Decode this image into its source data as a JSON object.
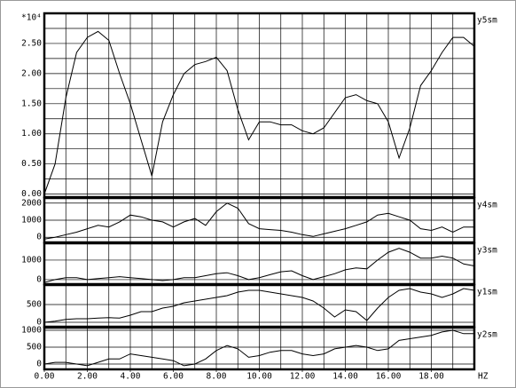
{
  "chart_data": [
    {
      "type": "line",
      "name": "y5sm",
      "multiplier": "*10⁴",
      "x": [
        0,
        0.5,
        1,
        1.5,
        2,
        2.5,
        3,
        3.5,
        4,
        4.5,
        5,
        5.5,
        6,
        6.5,
        7,
        7.5,
        8,
        8.5,
        9,
        9.5,
        10,
        10.5,
        11,
        11.5,
        12,
        12.5,
        13,
        13.5,
        14,
        14.5,
        15,
        15.5,
        16,
        16.5,
        17,
        17.5,
        18,
        18.5,
        19,
        19.5,
        20
      ],
      "values": [
        0,
        0.5,
        1.6,
        2.35,
        2.6,
        2.7,
        2.55,
        2.0,
        1.5,
        0.9,
        0.3,
        1.2,
        1.65,
        2.0,
        2.15,
        2.2,
        2.27,
        2.05,
        1.4,
        0.9,
        1.2,
        1.2,
        1.15,
        1.15,
        1.05,
        1.0,
        1.1,
        1.35,
        1.6,
        1.65,
        1.55,
        1.5,
        1.2,
        0.6,
        1.1,
        1.8,
        2.05,
        2.35,
        2.6,
        2.6,
        2.45
      ],
      "xlim": [
        0,
        20
      ],
      "ylim": [
        -0.05,
        3.0
      ],
      "yticks": [
        {
          "value": 0,
          "label": "0.00"
        },
        {
          "value": 0.5,
          "label": "0.50"
        },
        {
          "value": 1,
          "label": "1.00"
        },
        {
          "value": 1.5,
          "label": "1.50"
        },
        {
          "value": 2,
          "label": "2.00"
        },
        {
          "value": 2.5,
          "label": "2.50"
        }
      ],
      "minor_yticks": [
        0.25,
        0.75,
        1.25,
        1.75,
        2.25,
        2.75
      ],
      "minor_xticks": [
        1,
        2,
        3,
        4,
        5,
        6,
        7,
        8,
        9,
        10,
        11,
        12,
        13,
        14,
        15,
        16,
        17,
        18,
        19
      ],
      "grid": true
    },
    {
      "type": "line",
      "name": "y4sm",
      "x": [
        0,
        0.5,
        1,
        1.5,
        2,
        2.5,
        3,
        3.5,
        4,
        4.5,
        5,
        5.5,
        6,
        6.5,
        7,
        7.5,
        8,
        8.5,
        9,
        9.5,
        10,
        10.5,
        11,
        11.5,
        12,
        12.5,
        13,
        13.5,
        14,
        14.5,
        15,
        15.5,
        16,
        16.5,
        17,
        17.5,
        18,
        18.5,
        19,
        19.5,
        20
      ],
      "values": [
        -100,
        0,
        150,
        300,
        500,
        700,
        600,
        900,
        1300,
        1200,
        1000,
        900,
        600,
        900,
        1100,
        700,
        1500,
        2000,
        1700,
        800,
        500,
        450,
        400,
        300,
        150,
        50,
        200,
        350,
        500,
        700,
        900,
        1300,
        1400,
        1200,
        1000,
        500,
        400,
        600,
        300,
        600,
        600
      ],
      "xlim": [
        0,
        20
      ],
      "ylim": [
        -300,
        2300
      ],
      "yticks": [
        0,
        1000,
        2000
      ],
      "minor_xticks": [
        1,
        2,
        3,
        4,
        5,
        6,
        7,
        8,
        9,
        10,
        11,
        12,
        13,
        14,
        15,
        16,
        17,
        18,
        19
      ],
      "grid": true
    },
    {
      "type": "line",
      "name": "y3sm",
      "x": [
        0,
        0.5,
        1,
        1.5,
        2,
        2.5,
        3,
        3.5,
        4,
        4.5,
        5,
        5.5,
        6,
        6.5,
        7,
        7.5,
        8,
        8.5,
        9,
        9.5,
        10,
        10.5,
        11,
        11.5,
        12,
        12.5,
        13,
        13.5,
        14,
        14.5,
        15,
        15.5,
        16,
        16.5,
        17,
        17.5,
        18,
        18.5,
        19,
        19.5,
        20
      ],
      "values": [
        -150,
        0,
        100,
        100,
        0,
        50,
        100,
        150,
        100,
        50,
        0,
        -50,
        0,
        100,
        100,
        200,
        300,
        350,
        200,
        0,
        100,
        250,
        400,
        450,
        200,
        0,
        150,
        300,
        500,
        600,
        550,
        1000,
        1400,
        1600,
        1400,
        1100,
        1100,
        1200,
        1100,
        800,
        700
      ],
      "xlim": [
        0,
        20
      ],
      "ylim": [
        -230,
        1860
      ],
      "yticks": [
        0,
        1000
      ],
      "minor_xticks": [
        1,
        2,
        3,
        4,
        5,
        6,
        7,
        8,
        9,
        10,
        11,
        12,
        13,
        14,
        15,
        16,
        17,
        18,
        19
      ],
      "grid": true
    },
    {
      "type": "line",
      "name": "y1sm",
      "x": [
        0,
        0.5,
        1,
        1.5,
        2,
        2.5,
        3,
        3.5,
        4,
        4.5,
        5,
        5.5,
        6,
        6.5,
        7,
        7.5,
        8,
        8.5,
        9,
        9.5,
        10,
        10.5,
        11,
        11.5,
        12,
        12.5,
        13,
        13.5,
        14,
        14.5,
        15,
        15.5,
        16,
        16.5,
        17,
        17.5,
        18,
        18.5,
        19,
        19.5,
        20
      ],
      "values": [
        0,
        30,
        80,
        100,
        100,
        120,
        130,
        120,
        200,
        300,
        300,
        400,
        450,
        550,
        600,
        650,
        700,
        750,
        850,
        900,
        900,
        850,
        800,
        750,
        700,
        600,
        400,
        150,
        350,
        300,
        50,
        400,
        700,
        900,
        950,
        850,
        800,
        700,
        800,
        950,
        900
      ],
      "xlim": [
        0,
        20
      ],
      "ylim": [
        -125,
        1050
      ],
      "yticks": [
        0,
        500
      ],
      "minor_xticks": [
        1,
        2,
        3,
        4,
        5,
        6,
        7,
        8,
        9,
        10,
        11,
        12,
        13,
        14,
        15,
        16,
        17,
        18,
        19
      ],
      "grid": true
    },
    {
      "type": "line",
      "name": "y2sm",
      "x_label": "HZ",
      "x": [
        0,
        0.5,
        1,
        1.5,
        2,
        2.5,
        3,
        3.5,
        4,
        4.5,
        5,
        5.5,
        6,
        6.5,
        7,
        7.5,
        8,
        8.5,
        9,
        9.5,
        10,
        10.5,
        11,
        11.5,
        12,
        12.5,
        13,
        13.5,
        14,
        14.5,
        15,
        15.5,
        16,
        16.5,
        17,
        17.5,
        18,
        18.5,
        19,
        19.5,
        20
      ],
      "values": [
        0,
        50,
        50,
        0,
        -50,
        50,
        150,
        150,
        300,
        250,
        200,
        150,
        100,
        -50,
        0,
        150,
        400,
        550,
        450,
        200,
        250,
        350,
        400,
        400,
        300,
        250,
        300,
        450,
        500,
        550,
        500,
        400,
        450,
        700,
        750,
        800,
        850,
        950,
        1000,
        900,
        900
      ],
      "xlim": [
        0,
        20
      ],
      "ylim": [
        -158,
        1079
      ],
      "yticks": [
        0,
        500,
        1000
      ],
      "xticks": [
        {
          "value": 0,
          "label": "0.00"
        },
        {
          "value": 2,
          "label": "2.00"
        },
        {
          "value": 4,
          "label": "4.00"
        },
        {
          "value": 6,
          "label": "6.00"
        },
        {
          "value": 8,
          "label": "8.00"
        },
        {
          "value": 10,
          "label": "10.00"
        },
        {
          "value": 12,
          "label": "12.00"
        },
        {
          "value": 14,
          "label": "14.00"
        },
        {
          "value": 16,
          "label": "16.00"
        },
        {
          "value": 18,
          "label": "18.00"
        }
      ],
      "minor_xticks": [
        1,
        2,
        3,
        4,
        5,
        6,
        7,
        8,
        9,
        10,
        11,
        12,
        13,
        14,
        15,
        16,
        17,
        18,
        19
      ],
      "grid": true
    }
  ]
}
